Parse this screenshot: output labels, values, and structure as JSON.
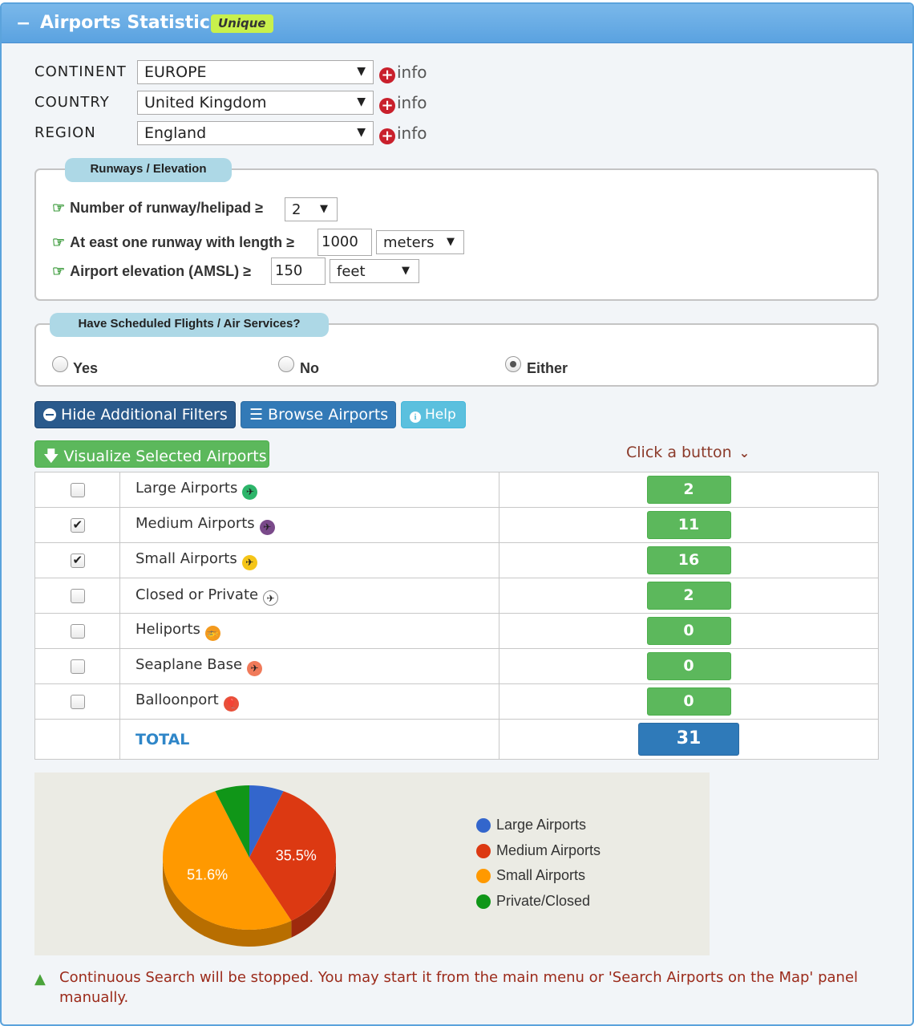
{
  "header": {
    "title": "Airports Statistics",
    "badge": "Unique",
    "collapse_icon": "−"
  },
  "location": {
    "continent": {
      "label": "CONTINENT",
      "value": "EUROPE",
      "info": "info"
    },
    "country": {
      "label": "COUNTRY",
      "value": "United Kingdom",
      "info": "info"
    },
    "region": {
      "label": "REGION",
      "value": "England",
      "info": "info"
    }
  },
  "runways": {
    "legend": "Runways / Elevation",
    "row1_label": "Number of runway/helipad ≥",
    "row1_value": "2",
    "row2_label": "At east one runway with length ≥",
    "row2_value": "1000",
    "row2_unit": "meters",
    "row3_label": "Airport elevation (AMSL) ≥",
    "row3_value": "150",
    "row3_unit": "feet"
  },
  "scheduled": {
    "legend": "Have Scheduled Flights / Air Services?",
    "options": [
      "Yes",
      "No",
      "Either"
    ],
    "selected": "Either"
  },
  "buttons": {
    "hide_filters": "Hide Additional Filters",
    "browse": "Browse Airports",
    "help": "Help",
    "visualize": "Visualize Selected Airports",
    "click_hint": "Click a button"
  },
  "table": {
    "rows": [
      {
        "name": "Large Airports",
        "count": "2",
        "checked": false,
        "icon": "large-airport-icon",
        "icon_color": "#2db56a"
      },
      {
        "name": "Medium Airports",
        "count": "11",
        "checked": true,
        "icon": "medium-airport-icon",
        "icon_color": "#7a4a8a"
      },
      {
        "name": "Small Airports",
        "count": "16",
        "checked": true,
        "icon": "small-airport-icon",
        "icon_color": "#f5c518"
      },
      {
        "name": "Closed or Private",
        "count": "2",
        "checked": false,
        "icon": "closed-airport-icon",
        "icon_color": "#ffffff"
      },
      {
        "name": "Heliports",
        "count": "0",
        "checked": false,
        "icon": "heliport-icon",
        "icon_color": "#f39a1e"
      },
      {
        "name": "Seaplane Base",
        "count": "0",
        "checked": false,
        "icon": "seaplane-icon",
        "icon_color": "#f07a5a"
      },
      {
        "name": "Balloonport",
        "count": "0",
        "checked": false,
        "icon": "balloon-icon",
        "icon_color": "#e8503a"
      }
    ],
    "total_label": "TOTAL",
    "total_value": "31"
  },
  "chart_data": {
    "type": "pie",
    "categories": [
      "Large Airports",
      "Medium Airports",
      "Small Airports",
      "Private/Closed"
    ],
    "values": [
      2,
      11,
      16,
      2
    ],
    "colors": [
      "#3366cc",
      "#dc3912",
      "#ff9900",
      "#109618"
    ],
    "labels": [
      "",
      "35.5%",
      "51.6%",
      ""
    ],
    "legend_position": "right"
  },
  "warning": {
    "icon": "warning-triangle-icon",
    "text": "Continuous Search will be stopped. You may start it from the main menu or 'Search Airports on the Map' panel manually."
  }
}
